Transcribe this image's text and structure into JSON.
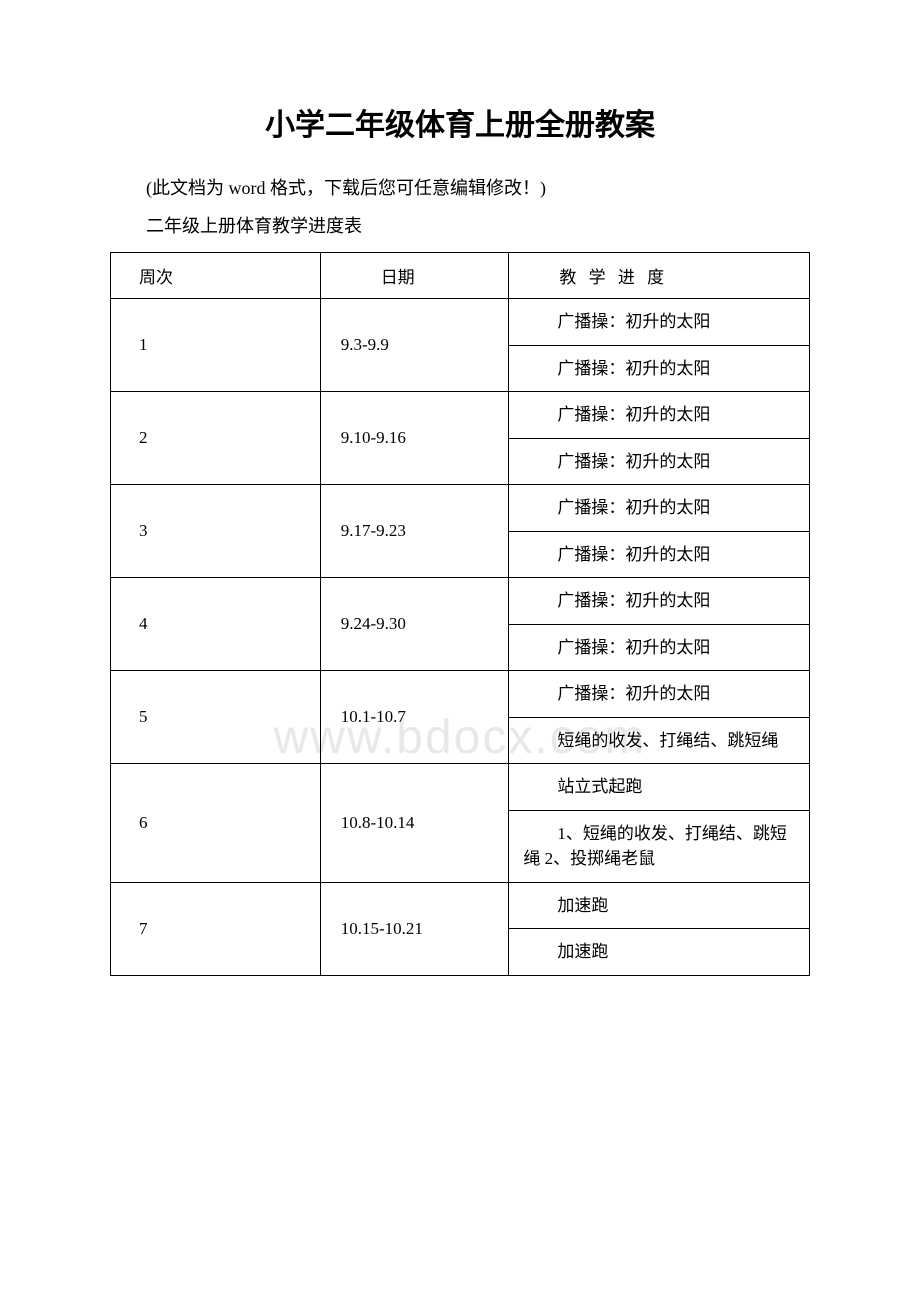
{
  "page": {
    "title": "小学二年级体育上册全册教案",
    "note_prefix": "(此文档为 ",
    "note_word": "word ",
    "note_suffix": "格式，下载后您可任意编辑修改！)",
    "subtitle": "二年级上册体育教学进度表",
    "watermark": "www.bdocx.com"
  },
  "table": {
    "headers": {
      "week": "周次",
      "date": "日期",
      "content": "教 学 进 度"
    },
    "rows": [
      {
        "week": "1",
        "date": "9.3-9.9",
        "items": [
          "广播操：初升的太阳",
          "广播操：初升的太阳"
        ]
      },
      {
        "week": "2",
        "date": "9.10-9.16",
        "items": [
          "广播操：初升的太阳",
          "广播操：初升的太阳"
        ]
      },
      {
        "week": "3",
        "date": "9.17-9.23",
        "items": [
          "广播操：初升的太阳",
          "广播操：初升的太阳"
        ]
      },
      {
        "week": "4",
        "date": "9.24-9.30",
        "items": [
          "广播操：初升的太阳",
          "广播操：初升的太阳"
        ]
      },
      {
        "week": "5",
        "date": "10.1-10.7",
        "items": [
          "广播操：初升的太阳",
          "短绳的收发、打绳结、跳短绳"
        ]
      },
      {
        "week": "6",
        "date": "10.8-10.14",
        "items": [
          "站立式起跑",
          "1、短绳的收发、打绳结、跳短绳 2、投掷绳老鼠"
        ]
      },
      {
        "week": "7",
        "date": "10.15-10.21",
        "items": [
          "加速跑",
          "加速跑"
        ]
      }
    ]
  },
  "styling": {
    "background_color": "#ffffff",
    "border_color": "#000000",
    "text_color": "#000000",
    "watermark_color": "#e8e8e8",
    "title_fontsize": 30,
    "body_fontsize": 18,
    "table_fontsize": 17,
    "watermark_fontsize": 48,
    "col_widths": [
      "30%",
      "27%",
      "43%"
    ]
  }
}
